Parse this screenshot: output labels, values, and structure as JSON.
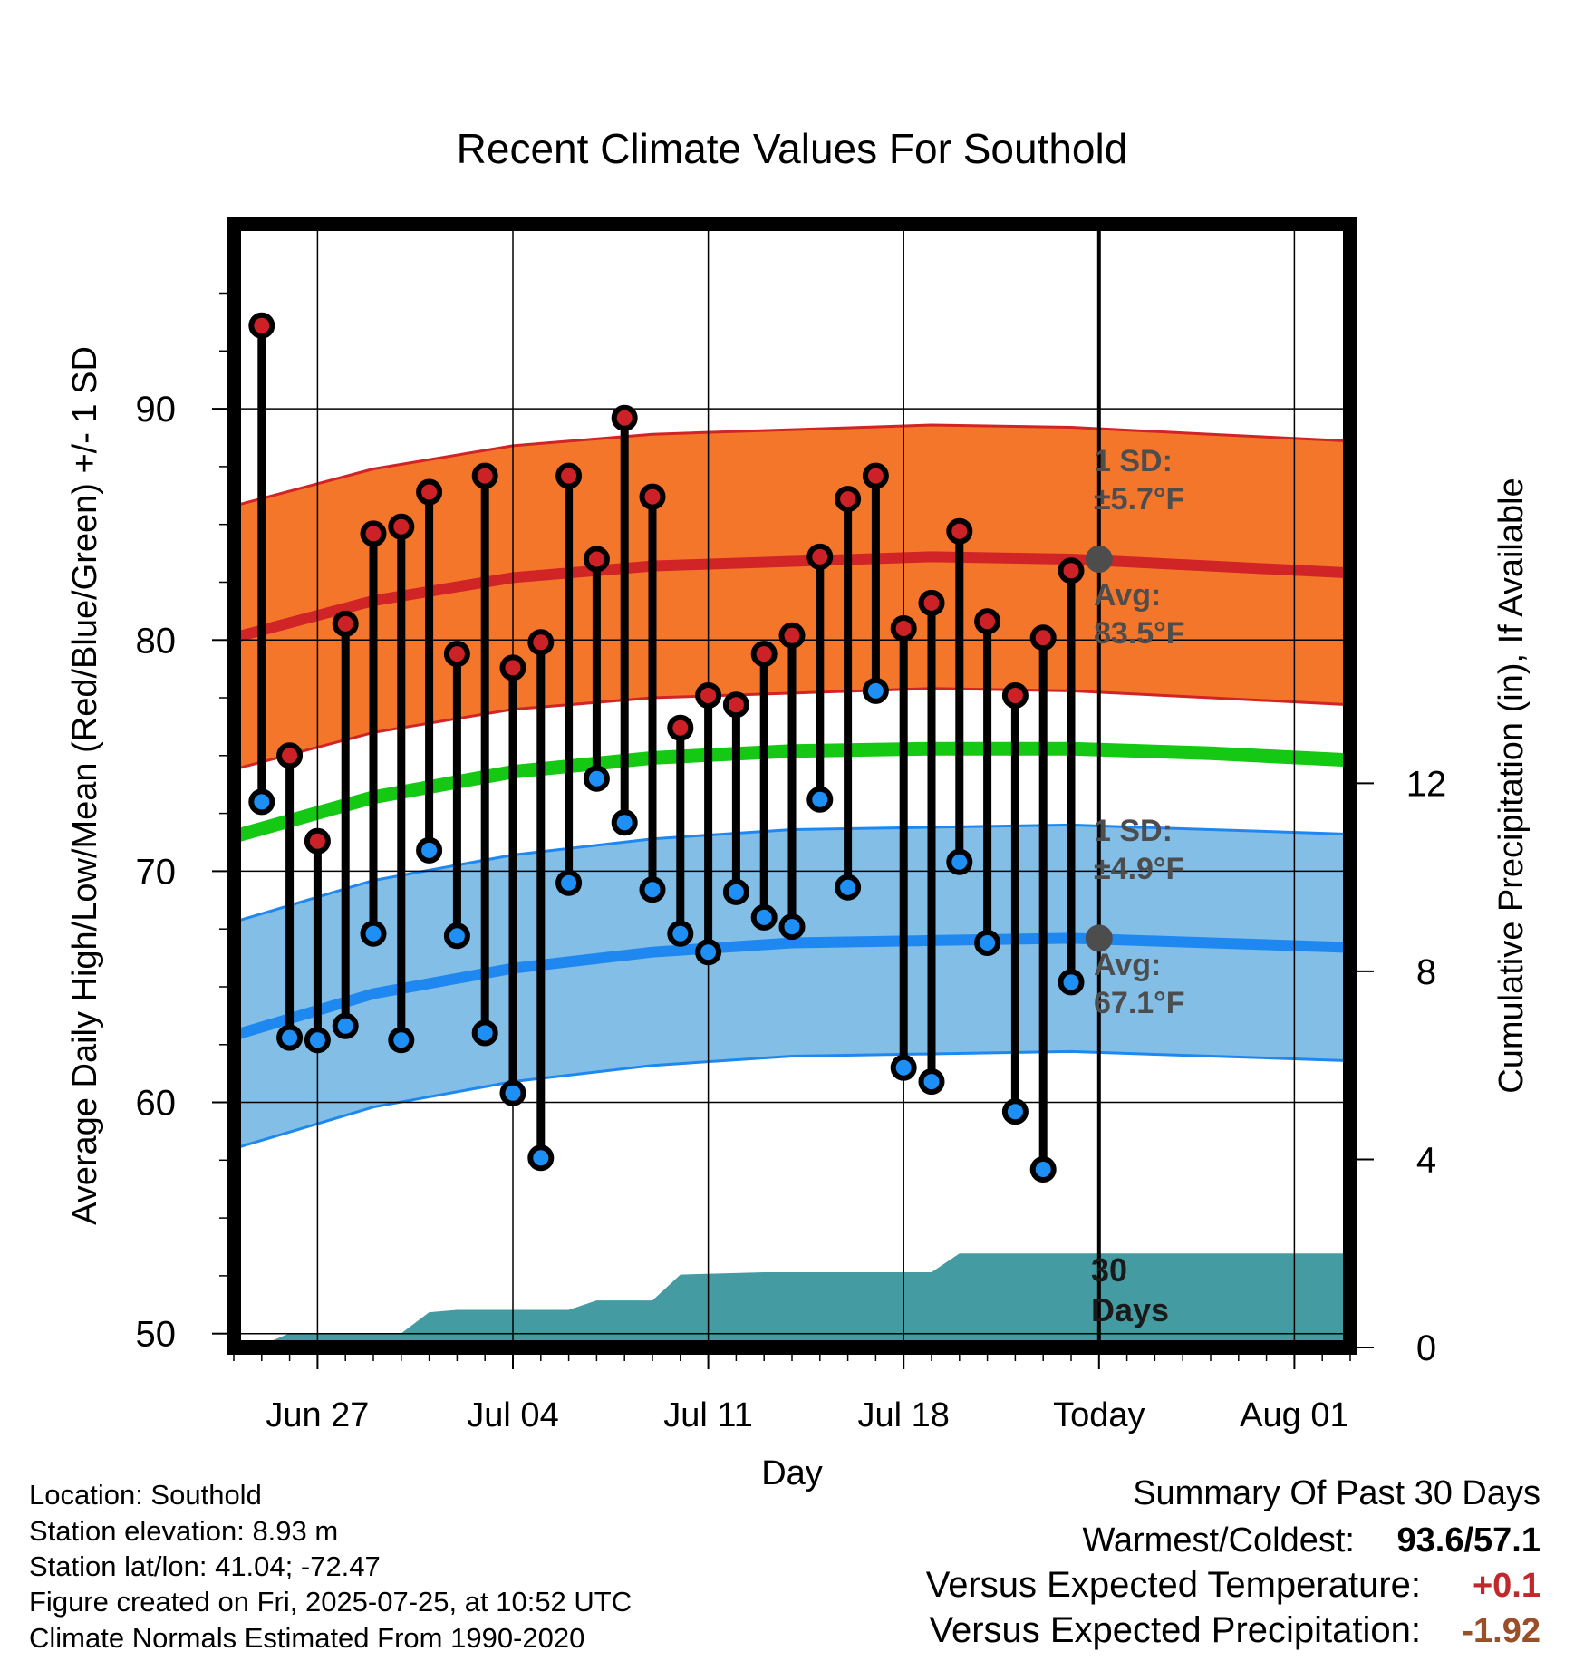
{
  "chart_data": {
    "type": "line",
    "title": "Recent Climate Values For Southold",
    "xlabel": "Day",
    "ylabel_left": "Average Daily High/Low/Mean (Red/Blue/Green) +/- 1 SD",
    "ylabel_right": "Cumulative Precipitation (in), If Available",
    "x_range": [
      "2025-06-24",
      "2025-08-03"
    ],
    "ylim_left": [
      49.4,
      98
    ],
    "ylim_right": [
      0,
      23.9
    ],
    "grid": true,
    "x_ticks": [
      {
        "date": "2025-06-27",
        "label": "Jun 27"
      },
      {
        "date": "2025-07-04",
        "label": "Jul 04"
      },
      {
        "date": "2025-07-11",
        "label": "Jul 11"
      },
      {
        "date": "2025-07-18",
        "label": "Jul 18"
      },
      {
        "date": "2025-07-25",
        "label": "Today"
      },
      {
        "date": "2025-08-01",
        "label": "Aug 01"
      }
    ],
    "y_ticks_left": [
      50,
      60,
      70,
      80,
      90
    ],
    "y_ticks_right": [
      0,
      4,
      8,
      12
    ],
    "today": "2025-07-25",
    "daily": {
      "dates": [
        "2025-06-25",
        "2025-06-26",
        "2025-06-27",
        "2025-06-28",
        "2025-06-29",
        "2025-06-30",
        "2025-07-01",
        "2025-07-02",
        "2025-07-03",
        "2025-07-04",
        "2025-07-05",
        "2025-07-06",
        "2025-07-07",
        "2025-07-08",
        "2025-07-09",
        "2025-07-10",
        "2025-07-11",
        "2025-07-12",
        "2025-07-13",
        "2025-07-14",
        "2025-07-15",
        "2025-07-16",
        "2025-07-17",
        "2025-07-18",
        "2025-07-19",
        "2025-07-20",
        "2025-07-21",
        "2025-07-22",
        "2025-07-23",
        "2025-07-24"
      ],
      "high": [
        93.6,
        75.0,
        71.3,
        80.7,
        84.6,
        84.9,
        86.4,
        79.4,
        87.1,
        78.8,
        79.9,
        87.1,
        83.5,
        89.6,
        86.2,
        76.2,
        77.6,
        77.2,
        79.4,
        80.2,
        83.6,
        86.1,
        87.1,
        80.5,
        81.6,
        84.7,
        80.8,
        77.6,
        80.1,
        83.0
      ],
      "low": [
        73.0,
        62.8,
        62.7,
        63.3,
        67.3,
        62.7,
        70.9,
        67.2,
        63.0,
        60.4,
        57.6,
        69.5,
        74.0,
        72.1,
        69.2,
        67.3,
        66.5,
        69.1,
        68.0,
        67.6,
        73.1,
        69.3,
        77.8,
        61.5,
        60.9,
        70.4,
        66.9,
        59.6,
        57.1,
        65.2
      ]
    },
    "normals": {
      "dates": [
        "2025-06-24",
        "2025-06-29",
        "2025-07-04",
        "2025-07-09",
        "2025-07-14",
        "2025-07-19",
        "2025-07-24",
        "2025-07-29",
        "2025-08-03"
      ],
      "avg_high": [
        80.1,
        81.7,
        82.7,
        83.2,
        83.4,
        83.6,
        83.5,
        83.2,
        82.9
      ],
      "avg_low": [
        62.9,
        64.7,
        65.8,
        66.5,
        66.9,
        67.0,
        67.1,
        66.9,
        66.7
      ],
      "avg_mean": [
        71.5,
        73.2,
        74.3,
        74.9,
        75.2,
        75.3,
        75.3,
        75.1,
        74.8
      ],
      "sd_high": 5.7,
      "sd_low": 4.9
    },
    "precipitation": {
      "points": [
        {
          "date": "2025-06-24",
          "value": 0.05
        },
        {
          "date": "2025-06-25",
          "value": 0.05
        },
        {
          "date": "2025-06-26",
          "value": 0.3
        },
        {
          "date": "2025-06-30",
          "value": 0.3
        },
        {
          "date": "2025-07-01",
          "value": 0.75
        },
        {
          "date": "2025-07-02",
          "value": 0.8
        },
        {
          "date": "2025-07-06",
          "value": 0.8
        },
        {
          "date": "2025-07-07",
          "value": 1.0
        },
        {
          "date": "2025-07-09",
          "value": 1.0
        },
        {
          "date": "2025-07-10",
          "value": 1.55
        },
        {
          "date": "2025-07-13",
          "value": 1.6
        },
        {
          "date": "2025-07-19",
          "value": 1.6
        },
        {
          "date": "2025-07-20",
          "value": 2.0
        },
        {
          "date": "2025-08-03",
          "value": 2.0
        }
      ]
    },
    "colors": {
      "high_band": "#f4762b",
      "high_line": "#d02426",
      "low_band": "#82bee6",
      "low_line": "#1e88f0",
      "mean_line": "#14c814",
      "precip": "#459ba2",
      "high_marker": "#cc2127",
      "low_marker": "#1e8ff5",
      "annotation": "#4d4d4d"
    },
    "annotations": {
      "high_sd_label": "1 SD:",
      "high_sd_value": "±5.7°F",
      "high_avg_label": "Avg:",
      "high_avg_value": "83.5°F",
      "low_sd_label": "1 SD:",
      "low_sd_value": "±4.9°F",
      "low_avg_label": "Avg:",
      "low_avg_value": "67.1°F",
      "days_line1": "30",
      "days_line2": "Days"
    }
  },
  "info": {
    "location": "Location: Southold",
    "elevation": "Station elevation: 8.93 m",
    "latlon": "Station lat/lon: 41.04; -72.47",
    "created": "Figure created on Fri, 2025-07-25, at 10:52 UTC",
    "normals": "Climate Normals Estimated From 1990-2020"
  },
  "summary": {
    "title": "Summary Of Past 30 Days",
    "warmest_label": "Warmest/Coldest:",
    "warmest_value": "93.6",
    "slash": "/",
    "coldest_value": "57.1",
    "temp_label": "Versus Expected Temperature:",
    "temp_value": "+0.1",
    "temp_color": "#c0282c",
    "precip_label": "Versus Expected Precipitation:",
    "precip_value": "-1.92",
    "precip_color": "#9b4f28"
  }
}
